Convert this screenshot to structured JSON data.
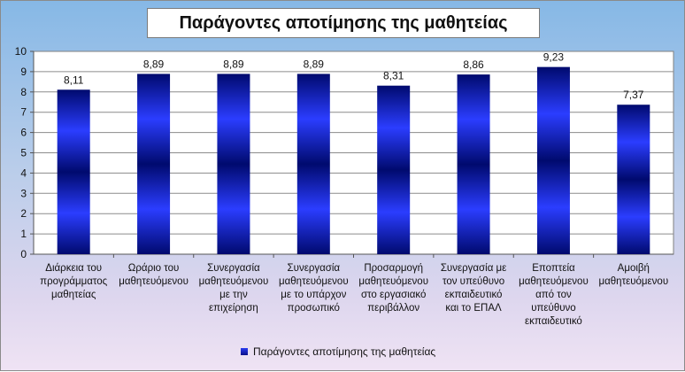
{
  "chart_data": {
    "type": "bar",
    "title": "Παράγοντες αποτίμησης της μαθητείας",
    "categories": [
      [
        "Διάρκεια του",
        "προγράμματος",
        "μαθητείας"
      ],
      [
        "Ωράριο του",
        "μαθητευόμενου"
      ],
      [
        "Συνεργασία",
        "μαθητευόμενου",
        "με την",
        "επιχείρηση"
      ],
      [
        "Συνεργασία",
        "μαθητευόμενου",
        "με το υπάρχον",
        "προσωπικό"
      ],
      [
        "Προσαρμογή",
        "μαθητευόμενου",
        "στο εργασιακό",
        "περιβάλλον"
      ],
      [
        "Συνεργασία με",
        "τον υπεύθυνο",
        "εκπαιδευτικό",
        "και το ΕΠΑΛ"
      ],
      [
        "Εποπτεία",
        "μαθητευόμενου",
        "από τον",
        "υπεύθυνο",
        "εκπαιδευτικό"
      ],
      [
        "Αμοιβή",
        "μαθητευόμενου"
      ]
    ],
    "series": [
      {
        "name": "Παράγοντες αποτίμησης της μαθητείας",
        "values": [
          8.11,
          8.89,
          8.89,
          8.89,
          8.31,
          8.86,
          9.23,
          7.37
        ],
        "labels": [
          "8,11",
          "8,89",
          "8,89",
          "8,89",
          "8,31",
          "8,86",
          "9,23",
          "7,37"
        ]
      }
    ],
    "ylim": [
      0,
      10
    ],
    "yticks": [
      0,
      1,
      2,
      3,
      4,
      5,
      6,
      7,
      8,
      9,
      10
    ],
    "grid": true,
    "legend": "bottom",
    "colors": {
      "bar_dark": "#000a6e",
      "bar_light": "#2b3dff"
    }
  }
}
